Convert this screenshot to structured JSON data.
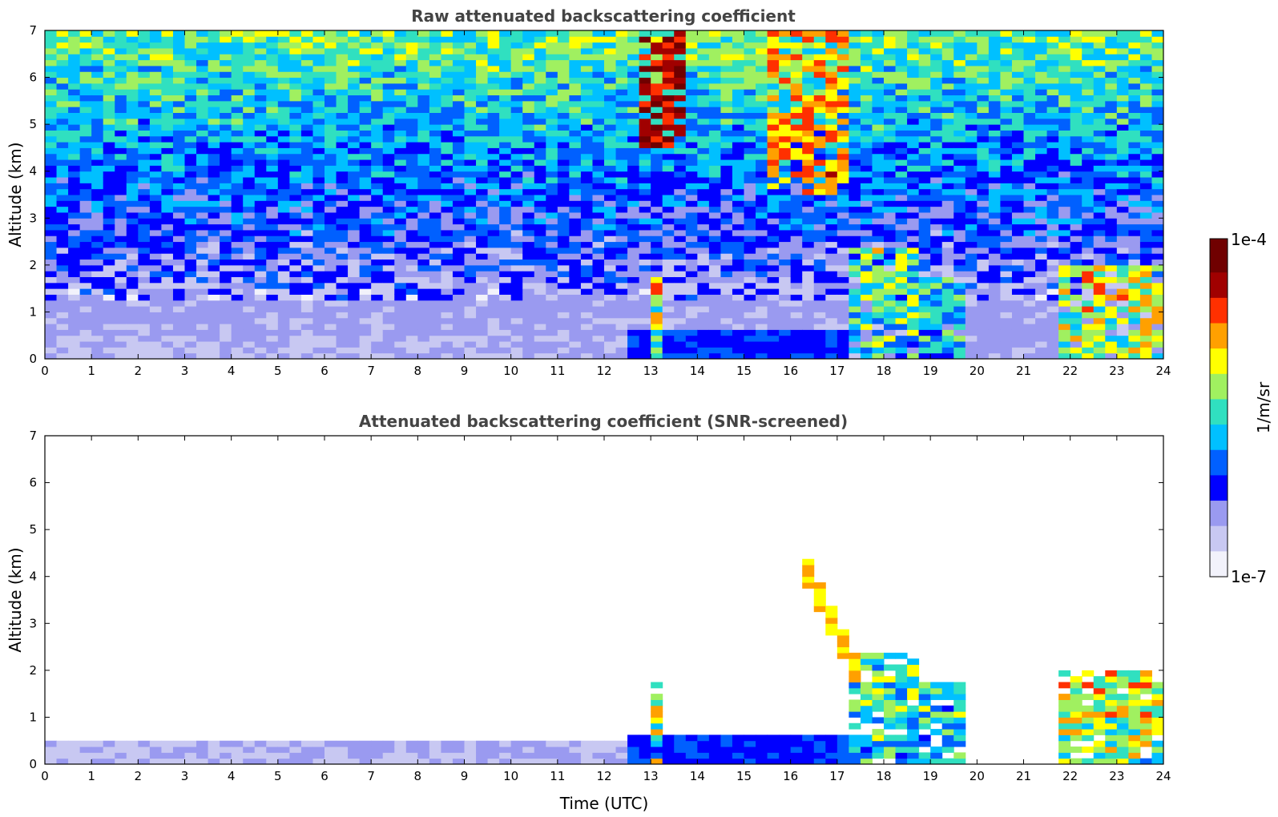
{
  "chart_data": [
    {
      "type": "heatmap",
      "title": "Raw attenuated backscattering coefficient",
      "xlabel": "",
      "ylabel": "Altitude (km)",
      "xlim": [
        0,
        24
      ],
      "ylim": [
        0,
        7
      ],
      "xticks": [
        "0",
        "1",
        "2",
        "3",
        "4",
        "5",
        "6",
        "7",
        "8",
        "9",
        "10",
        "11",
        "12",
        "13",
        "14",
        "15",
        "16",
        "17",
        "18",
        "19",
        "20",
        "21",
        "22",
        "23",
        "24"
      ],
      "yticks": [
        "0",
        "1",
        "2",
        "3",
        "4",
        "5",
        "6",
        "7"
      ],
      "screened": false,
      "features": [
        {
          "kind": "noise_background",
          "description_values": {
            "low_altitude_level": 0.1,
            "high_altitude_level": 0.55
          }
        },
        {
          "kind": "boundary_layer",
          "x": [
            0,
            12.6
          ],
          "top": 0.55,
          "level": 0.15
        },
        {
          "kind": "aerosol_layer",
          "x": [
            12.6,
            17.2
          ],
          "top": 0.6,
          "level": 0.3
        },
        {
          "kind": "cloud_column",
          "x": [
            13.0,
            13.35
          ],
          "top": 1.8,
          "level": 0.55
        },
        {
          "kind": "cloud_column",
          "x": [
            17.2,
            18.8
          ],
          "top": 2.4,
          "level": 0.45
        },
        {
          "kind": "cloud_column",
          "x": [
            18.8,
            19.7
          ],
          "top": 1.8,
          "level": 0.4
        },
        {
          "kind": "cloud_column",
          "x": [
            21.7,
            24.0
          ],
          "top": 2.0,
          "level": 0.55
        },
        {
          "kind": "high_layer",
          "x": [
            12.7,
            13.8
          ],
          "y": [
            4.5,
            7.0
          ],
          "level": 0.9
        },
        {
          "kind": "high_layer",
          "x": [
            15.5,
            17.2
          ],
          "y": [
            3.5,
            7.0
          ],
          "level": 0.75
        }
      ]
    },
    {
      "type": "heatmap",
      "title": "Attenuated backscattering coefficient (SNR-screened)",
      "xlabel": "Time (UTC)",
      "ylabel": "Altitude (km)",
      "xlim": [
        0,
        24
      ],
      "ylim": [
        0,
        7
      ],
      "xticks": [
        "0",
        "1",
        "2",
        "3",
        "4",
        "5",
        "6",
        "7",
        "8",
        "9",
        "10",
        "11",
        "12",
        "13",
        "14",
        "15",
        "16",
        "17",
        "18",
        "19",
        "20",
        "21",
        "22",
        "23",
        "24"
      ],
      "yticks": [
        "0",
        "1",
        "2",
        "3",
        "4",
        "5",
        "6",
        "7"
      ],
      "screened": true,
      "features": [
        {
          "kind": "boundary_layer",
          "x": [
            0,
            12.6
          ],
          "top": 0.5,
          "level": 0.15
        },
        {
          "kind": "aerosol_layer",
          "x": [
            12.6,
            17.2
          ],
          "top": 0.6,
          "level": 0.3
        },
        {
          "kind": "cloud_column",
          "x": [
            13.0,
            13.35
          ],
          "top": 1.8,
          "level": 0.55
        },
        {
          "kind": "cloud_column",
          "x": [
            17.2,
            18.8
          ],
          "top": 2.4,
          "level": 0.45
        },
        {
          "kind": "cloud_column",
          "x": [
            18.8,
            19.7
          ],
          "top": 1.8,
          "level": 0.4
        },
        {
          "kind": "cloud_column",
          "x": [
            21.7,
            24.0
          ],
          "top": 2.0,
          "level": 0.55
        },
        {
          "kind": "slant_layer",
          "x": [
            16.2,
            17.4
          ],
          "y": [
            4.4,
            2.0
          ],
          "level": 0.7
        }
      ]
    }
  ],
  "colorbar": {
    "label": "1/m/sr",
    "max_label": "1e-4",
    "min_label": "1e-7",
    "colormap": [
      "#f2f2fb",
      "#c8c8f2",
      "#9a9af0",
      "#0000ff",
      "#0060ff",
      "#00c0ff",
      "#30e0c0",
      "#a0f060",
      "#ffff00",
      "#ffa000",
      "#ff3000",
      "#a00000",
      "#700000"
    ]
  }
}
